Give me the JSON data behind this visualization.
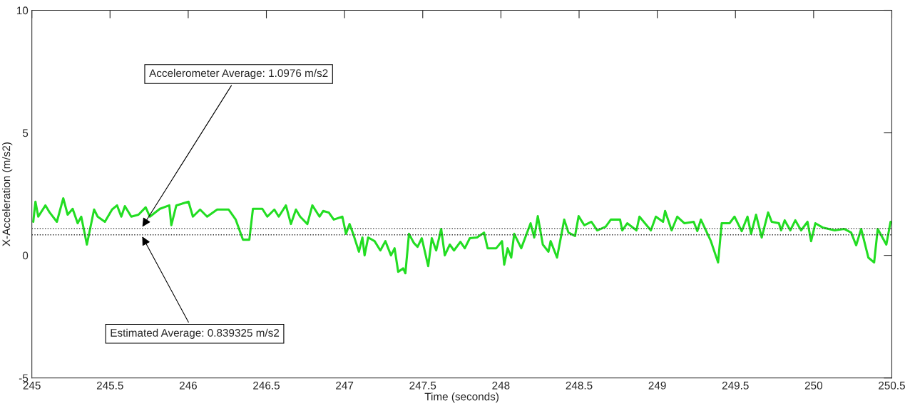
{
  "chart_data": {
    "type": "line",
    "xlabel": "Time (seconds)",
    "ylabel": "X-Acceleration (m/s2)",
    "xlim": [
      245,
      250.5
    ],
    "ylim": [
      -5,
      10
    ],
    "xticks": [
      245,
      245.5,
      246,
      246.5,
      247,
      247.5,
      248,
      248.5,
      249,
      249.5,
      250,
      250.5
    ],
    "yticks": [
      -5,
      0,
      5,
      10
    ],
    "grid": false,
    "line_style": "solid",
    "series": [
      {
        "color": "#22dd22",
        "x": [
          245.009,
          245.023,
          245.041,
          245.087,
          245.114,
          245.16,
          245.201,
          245.229,
          245.261,
          245.293,
          245.316,
          245.352,
          245.398,
          245.421,
          245.467,
          245.513,
          245.545,
          245.572,
          245.595,
          245.636,
          245.682,
          245.728,
          245.755,
          245.819,
          245.879,
          245.892,
          245.924,
          246.002,
          246.03,
          246.076,
          246.121,
          246.185,
          246.259,
          246.304,
          246.35,
          246.391,
          246.414,
          246.474,
          246.506,
          246.551,
          246.579,
          246.625,
          246.657,
          246.689,
          246.716,
          246.762,
          246.794,
          246.84,
          246.863,
          246.899,
          246.931,
          246.986,
          247.009,
          247.032,
          247.055,
          247.092,
          247.114,
          247.128,
          247.151,
          247.192,
          247.229,
          247.261,
          247.297,
          247.32,
          247.343,
          247.375,
          247.389,
          247.412,
          247.444,
          247.467,
          247.494,
          247.535,
          247.558,
          247.586,
          247.618,
          247.641,
          247.673,
          247.7,
          247.741,
          247.769,
          247.801,
          247.847,
          247.892,
          247.915,
          247.97,
          248.007,
          248.021,
          248.043,
          248.066,
          248.085,
          248.13,
          248.19,
          248.213,
          248.236,
          248.268,
          248.304,
          248.318,
          248.359,
          248.405,
          248.432,
          248.474,
          248.497,
          248.533,
          248.579,
          248.616,
          248.67,
          248.703,
          248.762,
          248.776,
          248.808,
          248.867,
          248.886,
          248.959,
          248.991,
          249.037,
          249.05,
          249.092,
          249.128,
          249.174,
          249.233,
          249.256,
          249.279,
          249.343,
          249.389,
          249.412,
          249.462,
          249.494,
          249.54,
          249.577,
          249.6,
          249.632,
          249.668,
          249.709,
          249.732,
          249.778,
          249.792,
          249.815,
          249.851,
          249.883,
          249.92,
          249.961,
          249.984,
          250.011,
          250.057,
          250.135,
          250.195,
          250.24,
          250.272,
          250.304,
          250.35,
          250.387,
          250.41,
          250.465,
          250.492
        ],
        "values": [
          1.37,
          2.19,
          1.58,
          2.04,
          1.75,
          1.37,
          2.33,
          1.66,
          1.9,
          1.31,
          1.58,
          0.44,
          1.87,
          1.58,
          1.37,
          1.87,
          2.04,
          1.58,
          2.01,
          1.58,
          1.66,
          1.96,
          1.58,
          1.9,
          2.04,
          1.23,
          2.04,
          2.19,
          1.58,
          1.87,
          1.58,
          1.87,
          1.87,
          1.46,
          0.64,
          0.64,
          1.9,
          1.9,
          1.58,
          1.87,
          1.58,
          2.04,
          1.28,
          1.87,
          1.58,
          1.28,
          2.04,
          1.58,
          1.81,
          1.75,
          1.46,
          1.58,
          0.88,
          1.28,
          0.88,
          0.15,
          0.73,
          0,
          0.73,
          0.58,
          0.2,
          0.58,
          0,
          0.29,
          -0.67,
          -0.53,
          -0.73,
          0.88,
          0.5,
          0.35,
          0.7,
          -0.44,
          0.7,
          0.2,
          1.08,
          0,
          0.44,
          0.2,
          0.55,
          0.29,
          0.7,
          0.73,
          0.93,
          0.29,
          0.29,
          0.58,
          -0.38,
          0.29,
          -0.09,
          0.88,
          0.29,
          1.31,
          0.73,
          1.6,
          0.44,
          0.15,
          0.58,
          -0.09,
          1.46,
          0.93,
          0.79,
          1.6,
          1.23,
          1.37,
          1.02,
          1.17,
          1.46,
          1.46,
          1.02,
          1.31,
          1.02,
          1.58,
          1.02,
          1.58,
          1.37,
          1.81,
          1.02,
          1.58,
          1.31,
          1.37,
          0.99,
          1.46,
          0.58,
          -0.29,
          1.31,
          1.31,
          1.58,
          0.99,
          1.58,
          0.88,
          1.66,
          0.73,
          1.75,
          1.37,
          1.31,
          1.02,
          1.43,
          1.02,
          1.43,
          1.02,
          1.37,
          0.58,
          1.31,
          1.14,
          1.02,
          1.08,
          0.93,
          0.41,
          1.08,
          -0.09,
          -0.29,
          1.08,
          0.44,
          1.37
        ]
      }
    ],
    "ref_lines": [
      {
        "axis": "y",
        "value": 1.0976,
        "label": "Accelerometer Average: 1.0976 m/s2",
        "color": "#333333",
        "line_style": "dotted"
      },
      {
        "axis": "y",
        "value": 0.839325,
        "label": "Estimated Average: 0.839325 m/s2",
        "color": "#333333",
        "line_style": "dotted"
      }
    ]
  }
}
